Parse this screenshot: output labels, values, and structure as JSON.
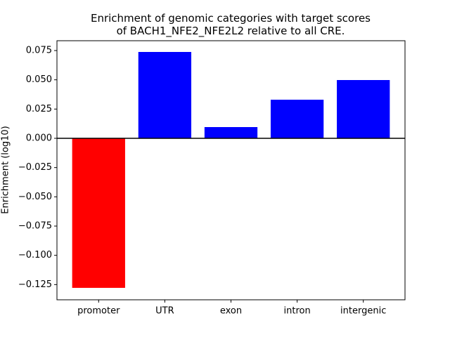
{
  "chart_data": {
    "type": "bar",
    "title": "Enrichment of genomic categories with target scores\nof BACH1_NFE2_NFE2L2 relative to all CRE.",
    "y_label": "Enrichment (log10)",
    "categories": [
      "promoter",
      "UTR",
      "exon",
      "intron",
      "intergenic"
    ],
    "values": [
      -0.1278,
      0.0738,
      0.0096,
      0.033,
      0.0498
    ],
    "colors": [
      "#ff0000",
      "#0000ff",
      "#0000ff",
      "#0000ff",
      "#0000ff"
    ],
    "ylim": [
      -0.138,
      0.0834
    ],
    "yticks": [
      0.075,
      {
        "value": 0.05,
        "label": "0.050"
      },
      0.025,
      {
        "value": 0,
        "label": "0.000"
      },
      {
        "value": -0.025,
        "label": "−0.025"
      },
      {
        "value": -0.05,
        "label": "−0.050"
      },
      {
        "value": -0.075,
        "label": "−0.075"
      },
      {
        "value": -0.1,
        "label": "−0.100"
      },
      {
        "value": -0.125,
        "label": "−0.125"
      }
    ]
  }
}
